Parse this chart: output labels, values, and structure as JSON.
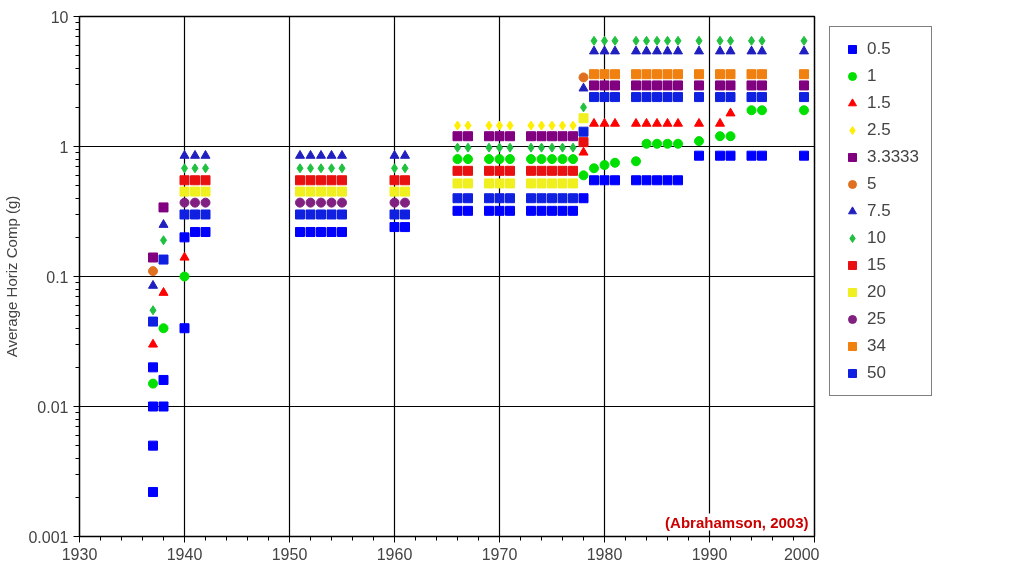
{
  "chart_data": {
    "type": "scatter",
    "ylabel": "Average Horiz Comp (g)",
    "log": "y",
    "xlim": [
      1930,
      2000
    ],
    "xticks": [
      1930,
      1940,
      1950,
      1960,
      1970,
      1980,
      1990,
      2000
    ],
    "ylim": [
      0.001,
      10
    ],
    "yticks": [
      0.001,
      0.01,
      0.1,
      1,
      10
    ],
    "grid": true,
    "legend": "right",
    "x": [
      1937,
      1938,
      1940,
      1941,
      1942,
      1951,
      1952,
      1953,
      1954,
      1955,
      1960,
      1961,
      1966,
      1967,
      1969,
      1970,
      1971,
      1973,
      1974,
      1975,
      1976,
      1977,
      1978,
      1979,
      1980,
      1981,
      1983,
      1984,
      1985,
      1986,
      1987,
      1989,
      1991,
      1992,
      1994,
      1995,
      1999
    ],
    "series": [
      {
        "name": "0.5",
        "color": "#0000ff",
        "marker": "square",
        "x": [
          1937,
          1937,
          1937,
          1937,
          1938,
          1938,
          1940,
          1940,
          1941,
          1942,
          1951,
          1952,
          1953,
          1954,
          1955,
          1960,
          1961,
          1966,
          1967,
          1969,
          1970,
          1971,
          1973,
          1974,
          1975,
          1976,
          1977,
          1978,
          1979,
          1980,
          1981,
          1983,
          1984,
          1985,
          1986,
          1987,
          1989,
          1991,
          1992,
          1994,
          1995,
          1999
        ],
        "values": [
          0.0022,
          0.005,
          0.01,
          0.02,
          0.01,
          0.016,
          0.04,
          0.2,
          0.22,
          0.22,
          0.22,
          0.22,
          0.22,
          0.22,
          0.22,
          0.24,
          0.24,
          0.32,
          0.32,
          0.32,
          0.32,
          0.32,
          0.32,
          0.32,
          0.32,
          0.32,
          0.32,
          0.4,
          0.55,
          0.55,
          0.55,
          0.55,
          0.55,
          0.55,
          0.55,
          0.55,
          0.85,
          0.85,
          0.85,
          0.85,
          0.85,
          0.85
        ]
      },
      {
        "name": "1",
        "color": "#00e000",
        "marker": "circle",
        "values": [
          0.015,
          0.04,
          0.1,
          null,
          null,
          null,
          null,
          null,
          null,
          null,
          null,
          null,
          0.8,
          0.8,
          0.8,
          0.8,
          0.8,
          0.8,
          0.8,
          0.8,
          0.8,
          0.8,
          0.6,
          0.68,
          0.72,
          0.75,
          0.77,
          1.05,
          1.05,
          1.05,
          1.05,
          1.1,
          1.2,
          1.2,
          1.9,
          1.9,
          1.9
        ]
      },
      {
        "name": "1.5",
        "color": "#ff0000",
        "marker": "triangle",
        "values": [
          0.03,
          0.075,
          0.14,
          null,
          null,
          null,
          null,
          null,
          null,
          null,
          null,
          null,
          null,
          null,
          null,
          null,
          null,
          null,
          null,
          null,
          null,
          null,
          0.9,
          1.5,
          1.5,
          1.5,
          1.5,
          1.5,
          1.5,
          1.5,
          1.5,
          1.5,
          1.5,
          1.8,
          null,
          null,
          null
        ]
      },
      {
        "name": "2.5",
        "color": "#ffee00",
        "marker": "diamond",
        "values": [
          null,
          null,
          null,
          null,
          null,
          null,
          null,
          null,
          null,
          null,
          null,
          null,
          1.45,
          1.45,
          1.45,
          1.45,
          1.45,
          1.45,
          1.45,
          1.45,
          1.45,
          1.45,
          null,
          null,
          null,
          null,
          null,
          null,
          null,
          null,
          null,
          null,
          null,
          null,
          null,
          null,
          null
        ]
      },
      {
        "name": "3.3333",
        "color": "#800080",
        "marker": "square",
        "values": [
          0.14,
          0.34,
          null,
          null,
          null,
          null,
          null,
          null,
          null,
          null,
          null,
          null,
          1.2,
          1.2,
          1.2,
          1.2,
          1.2,
          1.2,
          1.2,
          1.2,
          1.2,
          1.2,
          null,
          2.95,
          2.95,
          2.95,
          2.95,
          2.95,
          2.95,
          2.95,
          2.95,
          2.95,
          2.95,
          2.95,
          2.95,
          2.95,
          2.95
        ]
      },
      {
        "name": "5",
        "color": "#e07020",
        "marker": "circle",
        "values": [
          0.11,
          null,
          null,
          null,
          null,
          null,
          null,
          null,
          null,
          null,
          null,
          null,
          null,
          null,
          null,
          null,
          null,
          null,
          null,
          null,
          null,
          null,
          3.4,
          null,
          null,
          null,
          null,
          null,
          null,
          null,
          null,
          null,
          null,
          null,
          null,
          null,
          null
        ]
      },
      {
        "name": "7.5",
        "color": "#2020c0",
        "marker": "triangle",
        "values": [
          0.085,
          0.25,
          0.85,
          0.85,
          0.85,
          0.85,
          0.85,
          0.85,
          0.85,
          0.85,
          0.85,
          0.85,
          null,
          null,
          null,
          null,
          null,
          null,
          null,
          null,
          null,
          null,
          2.8,
          5.4,
          5.4,
          5.4,
          5.4,
          5.4,
          5.4,
          5.4,
          5.4,
          5.4,
          5.4,
          5.4,
          5.4,
          5.4,
          5.4
        ]
      },
      {
        "name": "10",
        "color": "#20c040",
        "marker": "diamond",
        "values": [
          0.055,
          0.19,
          0.68,
          0.68,
          0.68,
          0.68,
          0.68,
          0.68,
          0.68,
          0.68,
          0.68,
          0.68,
          0.98,
          0.98,
          0.98,
          0.98,
          0.98,
          0.98,
          0.98,
          0.98,
          0.98,
          0.98,
          2,
          6.5,
          6.5,
          6.5,
          6.5,
          6.5,
          6.5,
          6.5,
          6.5,
          6.5,
          6.5,
          6.5,
          6.5,
          6.5,
          6.5
        ]
      },
      {
        "name": "15",
        "color": "#e81010",
        "marker": "square",
        "values": [
          null,
          null,
          0.55,
          0.55,
          0.55,
          0.55,
          0.55,
          0.55,
          0.55,
          0.55,
          0.55,
          0.55,
          0.65,
          0.65,
          0.65,
          0.65,
          0.65,
          0.65,
          0.65,
          0.65,
          0.65,
          0.65,
          1.08,
          null,
          null,
          null,
          null,
          null,
          null,
          null,
          null,
          null,
          null,
          null,
          null,
          null,
          null
        ]
      },
      {
        "name": "20",
        "color": "#f0f020",
        "marker": "square",
        "values": [
          null,
          null,
          0.45,
          0.45,
          0.45,
          0.45,
          0.45,
          0.45,
          0.45,
          0.45,
          0.45,
          0.45,
          0.52,
          0.52,
          0.52,
          0.52,
          0.52,
          0.52,
          0.52,
          0.52,
          0.52,
          0.52,
          1.65,
          null,
          null,
          null,
          null,
          null,
          null,
          null,
          null,
          null,
          null,
          null,
          null,
          null,
          null
        ]
      },
      {
        "name": "25",
        "color": "#802080",
        "marker": "circle",
        "values": [
          null,
          null,
          0.37,
          0.37,
          0.37,
          0.37,
          0.37,
          0.37,
          0.37,
          0.37,
          0.37,
          0.37,
          null,
          null,
          null,
          null,
          null,
          null,
          null,
          null,
          null,
          null,
          null,
          null,
          null,
          null,
          null,
          null,
          null,
          null,
          null,
          null,
          null,
          null,
          null,
          null,
          null
        ]
      },
      {
        "name": "34",
        "color": "#f08010",
        "marker": "square",
        "values": [
          null,
          null,
          null,
          null,
          null,
          null,
          null,
          null,
          null,
          null,
          null,
          null,
          null,
          null,
          null,
          null,
          null,
          null,
          null,
          null,
          null,
          null,
          null,
          3.6,
          3.6,
          3.6,
          3.6,
          3.6,
          3.6,
          3.6,
          3.6,
          3.6,
          3.6,
          3.6,
          3.6,
          3.6,
          3.6
        ]
      },
      {
        "name": "50",
        "color": "#1020e0",
        "marker": "square",
        "values": [
          0.045,
          0.135,
          0.3,
          0.3,
          0.3,
          0.3,
          0.3,
          0.3,
          0.3,
          0.3,
          0.3,
          0.3,
          0.4,
          0.4,
          0.4,
          0.4,
          0.4,
          0.4,
          0.4,
          0.4,
          0.4,
          0.4,
          1.3,
          2.4,
          2.4,
          2.4,
          2.4,
          2.4,
          2.4,
          2.4,
          2.4,
          2.4,
          2.4,
          2.4,
          2.4,
          2.4,
          2.4
        ]
      }
    ],
    "annotations": [
      "(Abrahamson, 2003)"
    ]
  }
}
